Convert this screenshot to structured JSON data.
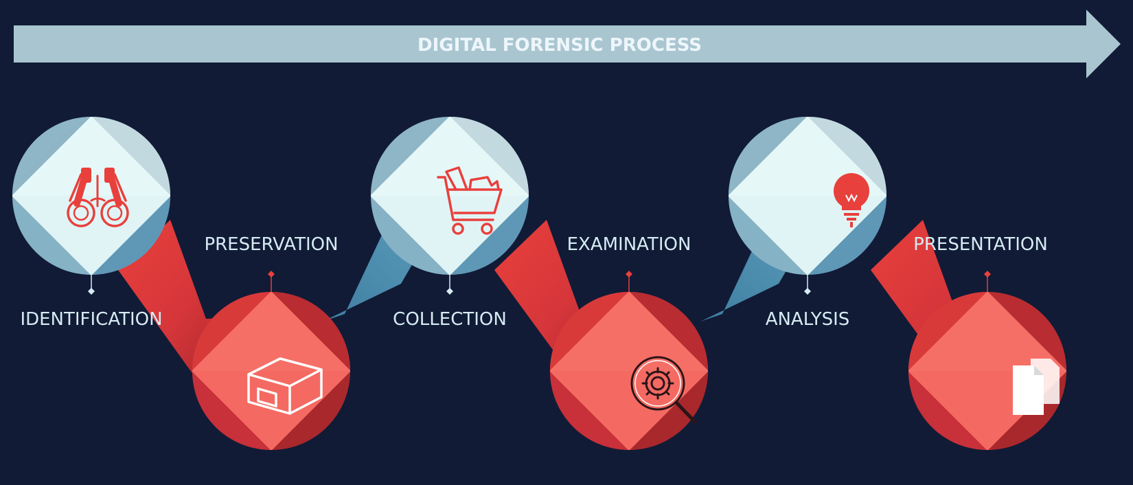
{
  "header": {
    "title": "DIGITAL FORENSIC PROCESS"
  },
  "steps": [
    {
      "label": "IDENTIFICATION",
      "icon": "binoculars-icon",
      "tone": "light"
    },
    {
      "label": "PRESERVATION",
      "icon": "box-icon",
      "tone": "red"
    },
    {
      "label": "COLLECTION",
      "icon": "shopping-cart-icon",
      "tone": "light"
    },
    {
      "label": "EXAMINATION",
      "icon": "gear-magnifier-icon",
      "tone": "red"
    },
    {
      "label": "ANALYSIS",
      "icon": "lightbulb-icon",
      "tone": "light"
    },
    {
      "label": "PRESENTATION",
      "icon": "documents-icon",
      "tone": "red"
    }
  ],
  "colors": {
    "background": "#111b36",
    "arrow": "#a9c6d0",
    "title_text": "#eef6fb",
    "label_text": "#d7ebf3",
    "red_primary": "#e8403c",
    "red_light": "#f56f66",
    "red_dark": "#a9282c",
    "blue_link": "#4f91b4",
    "light_face": "#e6f7f8",
    "light_top": "#a3c3cf",
    "light_dark": "#6aa0bb"
  }
}
